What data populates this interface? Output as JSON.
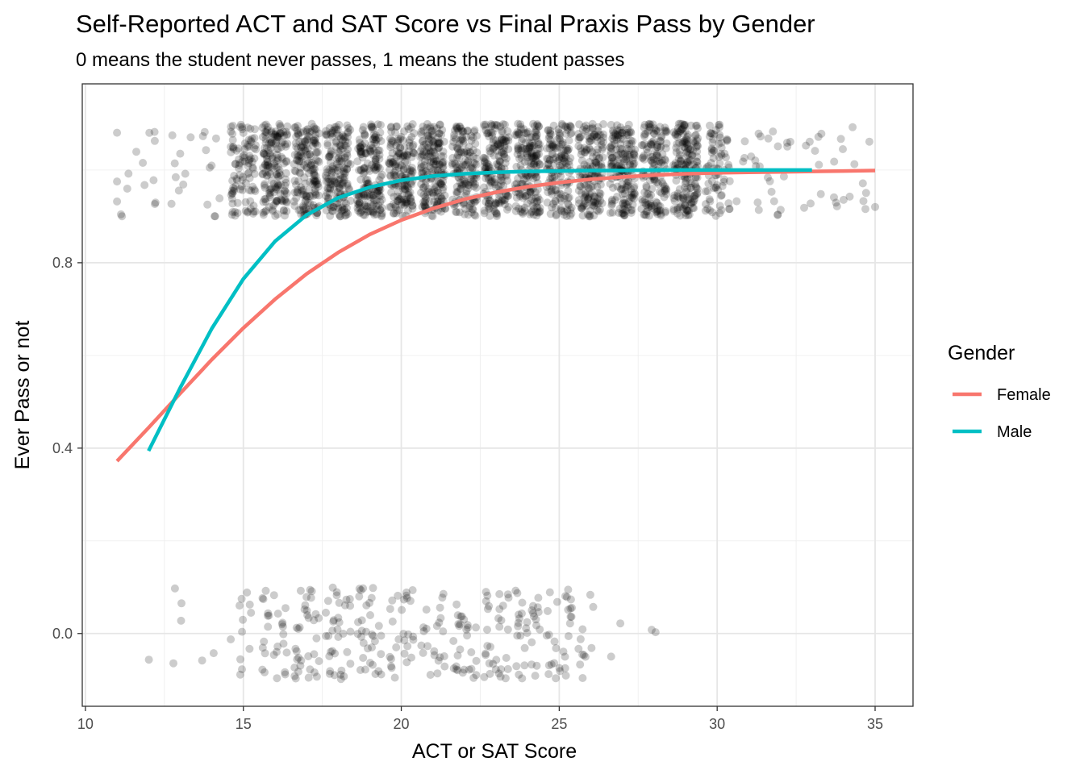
{
  "chart_data": {
    "type": "scatter",
    "title": "Self-Reported ACT and SAT Score vs Final Praxis Pass by Gender",
    "subtitle": "0 means the student never passes, 1 means the student passes",
    "xlabel": "ACT or SAT Score",
    "ylabel": "Ever Pass or not",
    "xlim": [
      9.9,
      36.2
    ],
    "ylim": [
      -0.157,
      1.186
    ],
    "x_ticks": [
      10,
      15,
      20,
      25,
      30,
      35
    ],
    "x_tick_labels": [
      "10",
      "15",
      "20",
      "25",
      "30",
      "35"
    ],
    "y_ticks": [
      0.0,
      0.4,
      0.8
    ],
    "y_tick_labels": [
      "0.0",
      "0.4",
      "0.8"
    ],
    "grid": true,
    "legend": {
      "title": "Gender",
      "position": "right"
    },
    "points": {
      "color": "#000000",
      "opacity": 0.2,
      "jitter_height": 0.1,
      "pass_groups": [
        {
          "y": 1,
          "x_range": [
            11,
            35
          ],
          "dense_range": [
            15,
            30
          ],
          "approx_count": 2600
        },
        {
          "y": 0,
          "x_range": [
            11,
            29
          ],
          "dense_range": [
            15,
            26
          ],
          "approx_count": 330
        }
      ]
    },
    "series": [
      {
        "name": "Female",
        "color": "#F8766D",
        "x": [
          11,
          12,
          13,
          14,
          15,
          16,
          17,
          18,
          19,
          20,
          21,
          22,
          23,
          24,
          25,
          26,
          27,
          28,
          29,
          30,
          31,
          32,
          33,
          34,
          35
        ],
        "y": [
          0.372,
          0.444,
          0.518,
          0.591,
          0.659,
          0.721,
          0.776,
          0.822,
          0.861,
          0.892,
          0.917,
          0.937,
          0.952,
          0.964,
          0.973,
          0.98,
          0.985,
          0.989,
          0.992,
          0.994,
          0.995,
          0.996,
          0.997,
          0.998,
          0.999
        ]
      },
      {
        "name": "Male",
        "color": "#00BFC4",
        "x": [
          12,
          13,
          14,
          15,
          16,
          17,
          18,
          19,
          20,
          21,
          22,
          23,
          24,
          25,
          26,
          27,
          28,
          29,
          30,
          31,
          32,
          33
        ],
        "y": [
          0.394,
          0.53,
          0.658,
          0.765,
          0.846,
          0.903,
          0.94,
          0.963,
          0.978,
          0.987,
          0.992,
          0.995,
          0.997,
          0.998,
          0.999,
          0.999,
          1.0,
          1.0,
          1.0,
          1.0,
          1.0,
          1.0
        ]
      }
    ]
  }
}
